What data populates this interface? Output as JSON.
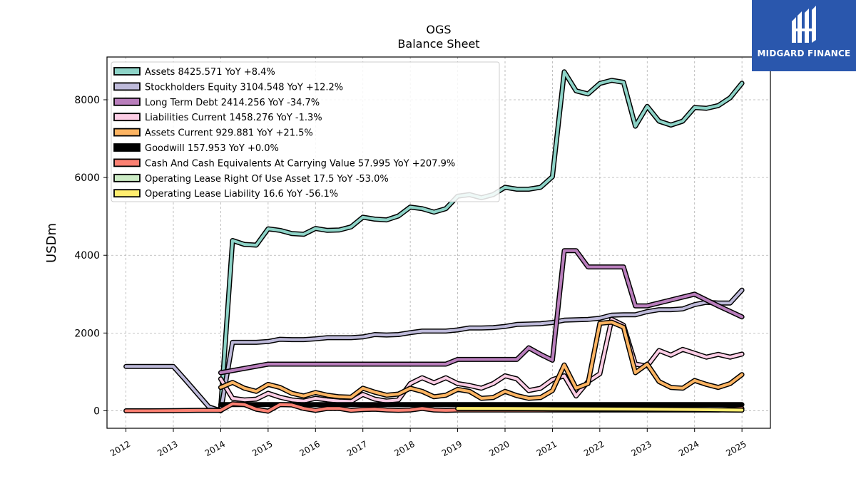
{
  "logo": {
    "text": "MIDGARD FINANCE",
    "icon": "midgard-logo-mark",
    "color": "#2a57ad"
  },
  "chart_data": {
    "type": "line",
    "title": "OGS",
    "subtitle": "Balance  Sheet",
    "ylabel": "USDm",
    "xlabel": "",
    "xlim": [
      2011.6,
      2025.6
    ],
    "ylim": [
      -450,
      9100
    ],
    "yticks": [
      0,
      2000,
      4000,
      6000,
      8000
    ],
    "xticks": [
      "2012",
      "2013",
      "2014",
      "2015",
      "2016",
      "2017",
      "2018",
      "2019",
      "2020",
      "2021",
      "2022",
      "2023",
      "2024",
      "2025"
    ],
    "grid": true,
    "legend_position": "upper-left",
    "series": [
      {
        "name": "Assets  8425.571 YoY +8.4%",
        "color": "#8dd3c7",
        "x": [
          2014.0,
          2014.25,
          2014.5,
          2014.75,
          2015.0,
          2015.25,
          2015.5,
          2015.75,
          2016.0,
          2016.25,
          2016.5,
          2016.75,
          2017.0,
          2017.25,
          2017.5,
          2017.75,
          2018.0,
          2018.25,
          2018.5,
          2018.75,
          2019.0,
          2019.25,
          2019.5,
          2019.75,
          2020.0,
          2020.25,
          2020.5,
          2020.75,
          2021.0,
          2021.25,
          2021.5,
          2021.75,
          2022.0,
          2022.25,
          2022.5,
          2022.75,
          2023.0,
          2023.25,
          2023.5,
          2023.75,
          2024.0,
          2024.25,
          2024.5,
          2024.75,
          2025.0
        ],
        "values": [
          80,
          4380,
          4280,
          4260,
          4680,
          4640,
          4560,
          4540,
          4690,
          4640,
          4650,
          4730,
          4980,
          4930,
          4910,
          5010,
          5240,
          5200,
          5110,
          5200,
          5520,
          5560,
          5480,
          5560,
          5750,
          5700,
          5700,
          5750,
          6020,
          8720,
          8230,
          8150,
          8420,
          8500,
          8450,
          7320,
          7830,
          7450,
          7350,
          7450,
          7800,
          7780,
          7850,
          8050,
          8425.571
        ]
      },
      {
        "name": "Stockholders Equity  3104.548 YoY +12.2%",
        "color": "#bebada",
        "x": [
          2012.0,
          2012.5,
          2013.0,
          2013.25,
          2013.5,
          2013.75,
          2014.0,
          2014.25,
          2014.5,
          2014.75,
          2015.0,
          2015.25,
          2015.5,
          2015.75,
          2016.0,
          2016.25,
          2016.5,
          2016.75,
          2017.0,
          2017.25,
          2017.5,
          2017.75,
          2018.0,
          2018.25,
          2018.5,
          2018.75,
          2019.0,
          2019.25,
          2019.5,
          2019.75,
          2020.0,
          2020.25,
          2020.5,
          2020.75,
          2021.0,
          2021.25,
          2021.5,
          2021.75,
          2022.0,
          2022.25,
          2022.5,
          2022.75,
          2023.0,
          2023.25,
          2023.5,
          2023.75,
          2024.0,
          2024.25,
          2024.5,
          2024.75,
          2025.0
        ],
        "values": [
          1140,
          1140,
          1140,
          800,
          450,
          100,
          0,
          1760,
          1760,
          1760,
          1780,
          1840,
          1830,
          1830,
          1850,
          1880,
          1880,
          1880,
          1900,
          1960,
          1950,
          1960,
          2010,
          2050,
          2050,
          2050,
          2080,
          2130,
          2130,
          2140,
          2170,
          2220,
          2230,
          2240,
          2270,
          2330,
          2340,
          2350,
          2380,
          2460,
          2470,
          2470,
          2550,
          2600,
          2600,
          2620,
          2730,
          2790,
          2770,
          2770,
          3104.548
        ]
      },
      {
        "name": "Long Term Debt  2414.256 YoY -34.7%",
        "color": "#b97ebc",
        "x": [
          2014.0,
          2015.0,
          2016.0,
          2017.0,
          2018.0,
          2018.75,
          2019.0,
          2019.5,
          2020.0,
          2020.25,
          2020.5,
          2020.75,
          2021.0,
          2021.25,
          2021.5,
          2021.75,
          2022.0,
          2022.25,
          2022.5,
          2022.75,
          2023.0,
          2023.5,
          2024.0,
          2024.5,
          2025.0
        ],
        "values": [
          980,
          1200,
          1200,
          1200,
          1200,
          1200,
          1320,
          1320,
          1320,
          1320,
          1620,
          1450,
          1300,
          4120,
          4120,
          3700,
          3700,
          3700,
          3700,
          2700,
          2700,
          2850,
          3000,
          2700,
          2414.256
        ]
      },
      {
        "name": "Liabilities Current  1458.276 YoY -1.3%",
        "color": "#fccde5",
        "x": [
          2014.0,
          2014.25,
          2014.5,
          2014.75,
          2015.0,
          2015.25,
          2015.5,
          2015.75,
          2016.0,
          2016.25,
          2016.5,
          2016.75,
          2017.0,
          2017.25,
          2017.5,
          2017.75,
          2018.0,
          2018.25,
          2018.5,
          2018.75,
          2019.0,
          2019.25,
          2019.5,
          2019.75,
          2020.0,
          2020.25,
          2020.5,
          2020.75,
          2021.0,
          2021.25,
          2021.5,
          2021.75,
          2022.0,
          2022.25,
          2022.5,
          2022.75,
          2023.0,
          2023.25,
          2023.5,
          2023.75,
          2024.0,
          2024.25,
          2024.5,
          2024.75,
          2025.0
        ],
        "values": [
          820,
          320,
          280,
          300,
          450,
          350,
          280,
          250,
          320,
          280,
          250,
          240,
          420,
          300,
          250,
          280,
          700,
          850,
          720,
          850,
          700,
          650,
          580,
          700,
          900,
          820,
          520,
          580,
          800,
          900,
          380,
          750,
          950,
          2350,
          2200,
          1200,
          1150,
          1550,
          1430,
          1580,
          1480,
          1380,
          1450,
          1380,
          1458.276
        ]
      },
      {
        "name": "Assets Current  929.881 YoY +21.5%",
        "color": "#fdb462",
        "x": [
          2014.0,
          2014.25,
          2014.5,
          2014.75,
          2015.0,
          2015.25,
          2015.5,
          2015.75,
          2016.0,
          2016.25,
          2016.5,
          2016.75,
          2017.0,
          2017.25,
          2017.5,
          2017.75,
          2018.0,
          2018.25,
          2018.5,
          2018.75,
          2019.0,
          2019.25,
          2019.5,
          2019.75,
          2020.0,
          2020.25,
          2020.5,
          2020.75,
          2021.0,
          2021.25,
          2021.5,
          2021.75,
          2022.0,
          2022.25,
          2022.5,
          2022.75,
          2023.0,
          2023.25,
          2023.5,
          2023.75,
          2024.0,
          2024.25,
          2024.5,
          2024.75,
          2025.0
        ],
        "values": [
          600,
          730,
          580,
          500,
          680,
          600,
          450,
          380,
          470,
          400,
          360,
          350,
          580,
          480,
          400,
          430,
          580,
          500,
          360,
          400,
          550,
          500,
          320,
          340,
          500,
          390,
          320,
          340,
          520,
          1180,
          580,
          700,
          2250,
          2280,
          2150,
          980,
          1200,
          750,
          600,
          580,
          780,
          680,
          600,
          700,
          929.881
        ]
      },
      {
        "name": "Goodwill  157.953 YoY +0.0%",
        "color": "#000000",
        "x": [
          2014.0,
          2015.0,
          2016.0,
          2017.0,
          2018.0,
          2019.0,
          2020.0,
          2021.0,
          2022.0,
          2023.0,
          2024.0,
          2025.0
        ],
        "values": [
          157.953,
          157.953,
          157.953,
          157.953,
          157.953,
          157.953,
          157.953,
          157.953,
          157.953,
          157.953,
          157.953,
          157.953
        ]
      },
      {
        "name": "Cash And Cash Equivalents At Carrying Value  57.995 YoY +207.9%",
        "color": "#fb8072",
        "x": [
          2012.0,
          2012.5,
          2013.0,
          2013.5,
          2014.0,
          2014.25,
          2014.5,
          2014.75,
          2015.0,
          2015.25,
          2015.5,
          2015.75,
          2016.0,
          2016.25,
          2016.5,
          2016.75,
          2017.0,
          2017.25,
          2017.5,
          2017.75,
          2018.0,
          2018.25,
          2018.5,
          2018.75,
          2019.0,
          2019.5,
          2020.0,
          2020.5,
          2021.0,
          2021.5,
          2022.0,
          2022.5,
          2023.0,
          2023.5,
          2024.0,
          2024.5,
          2025.0
        ],
        "values": [
          0,
          0,
          5,
          10,
          10,
          180,
          160,
          40,
          -10,
          160,
          150,
          60,
          10,
          60,
          60,
          10,
          30,
          40,
          20,
          10,
          20,
          60,
          20,
          10,
          20,
          20,
          20,
          20,
          20,
          20,
          20,
          20,
          20,
          20,
          20,
          20,
          57.995
        ]
      },
      {
        "name": "Operating Lease Right Of Use Asset  17.5 YoY -53.0%",
        "color": "#ccebc5",
        "x": [
          2019.0,
          2020.0,
          2021.0,
          2022.0,
          2023.0,
          2024.0,
          2025.0
        ],
        "values": [
          60,
          55,
          50,
          45,
          40,
          30,
          17.5
        ]
      },
      {
        "name": "Operating Lease Liability  16.6 YoY -56.1%",
        "color": "#ffed6f",
        "x": [
          2019.0,
          2020.0,
          2021.0,
          2022.0,
          2023.0,
          2024.0,
          2025.0
        ],
        "values": [
          62,
          58,
          52,
          47,
          41,
          30,
          16.6
        ]
      }
    ]
  }
}
